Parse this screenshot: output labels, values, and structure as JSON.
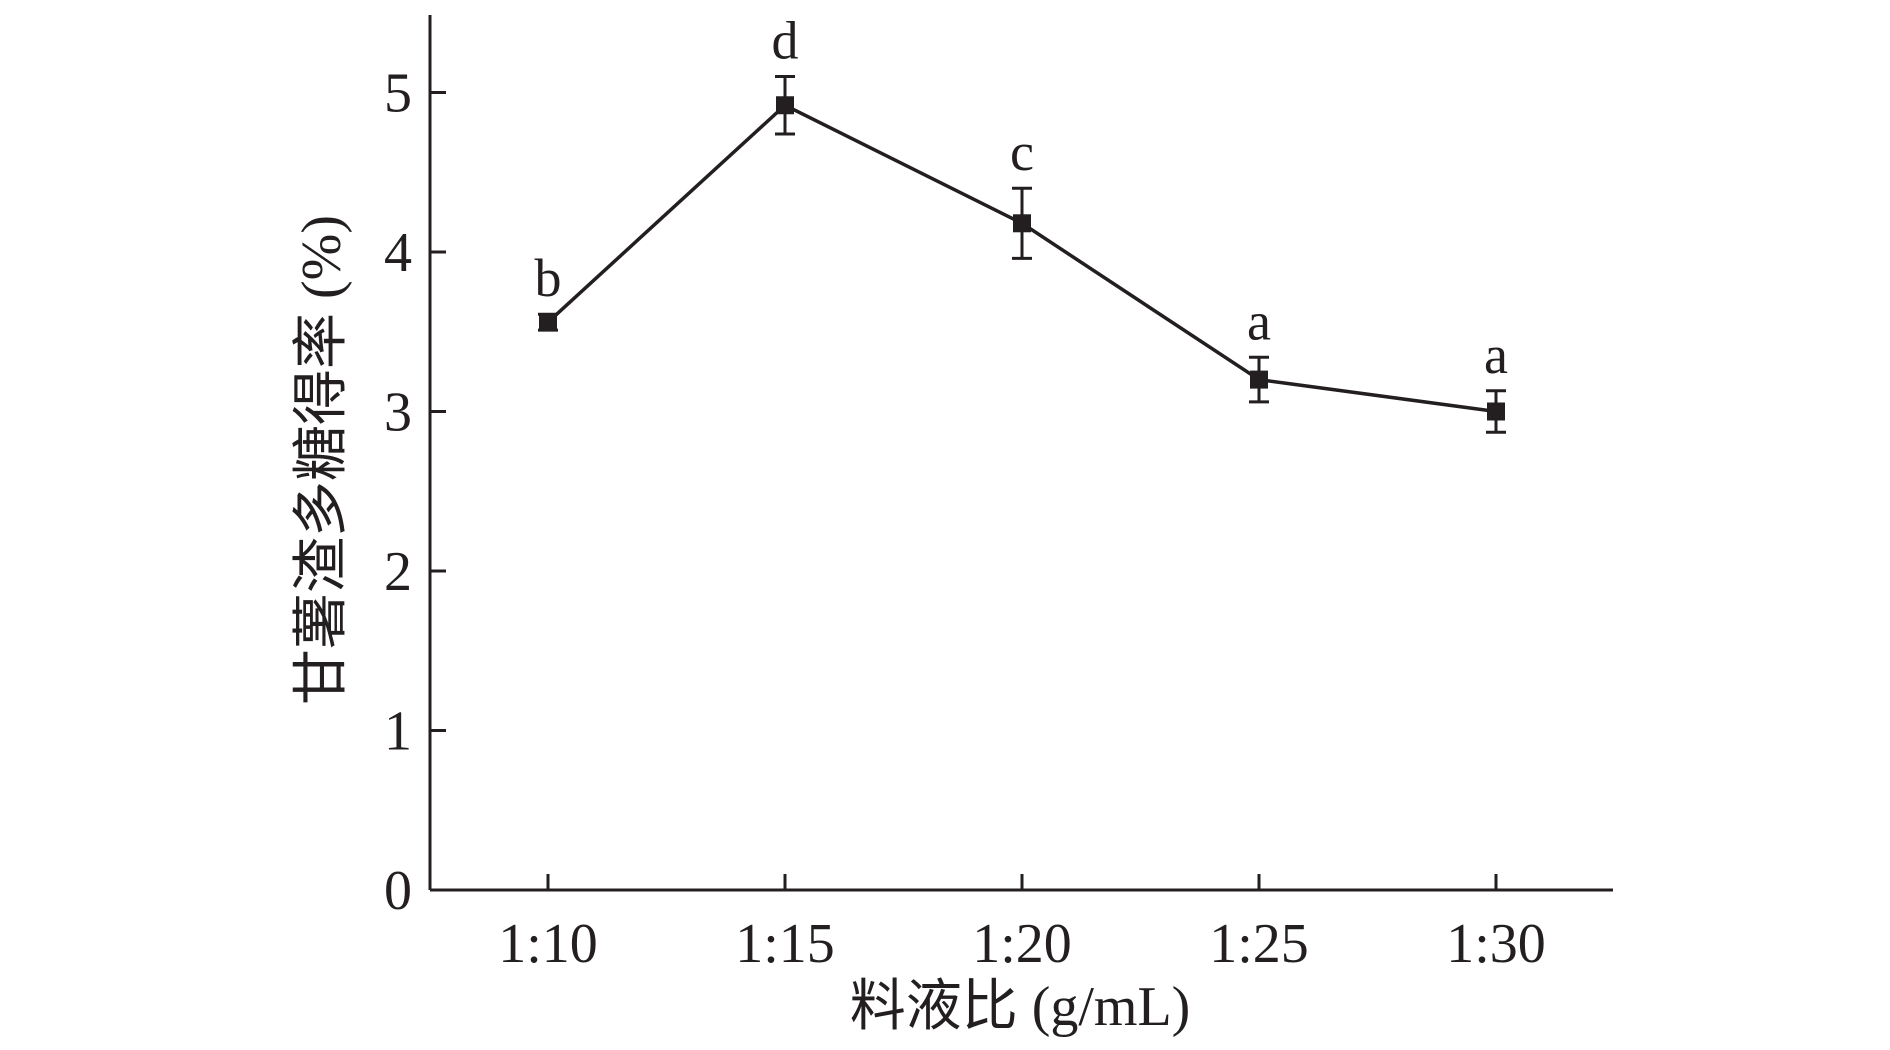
{
  "chart_data": {
    "type": "line",
    "xlabel": "料液比 (g/mL)",
    "ylabel": "甘薯渣多糖得率 (%)",
    "categories": [
      "1:10",
      "1:15",
      "1:20",
      "1:25",
      "1:30"
    ],
    "series": [
      {
        "values": [
          3.56,
          4.92,
          4.18,
          3.2,
          3.0
        ],
        "errors": [
          0.05,
          0.18,
          0.22,
          0.14,
          0.13
        ],
        "labels": [
          "b",
          "d",
          "c",
          "a",
          "a"
        ]
      }
    ],
    "ylim": [
      0,
      5.5
    ],
    "yticks": [
      "0",
      "1",
      "2",
      "3",
      "4",
      "5"
    ],
    "grid": false,
    "legend": "none",
    "colors": {
      "line": "#231f20",
      "axis": "#231f20"
    }
  }
}
